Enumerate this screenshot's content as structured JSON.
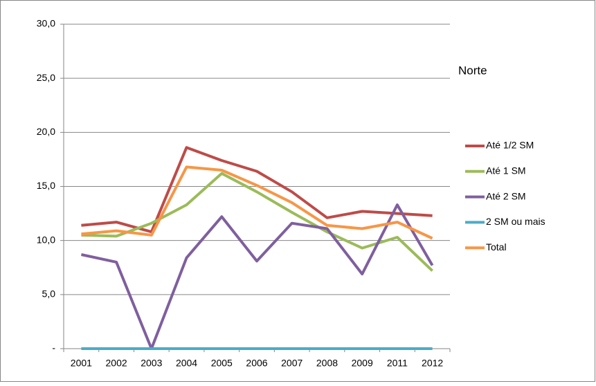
{
  "chart_data": {
    "type": "line",
    "subtitle": "Norte",
    "categories": [
      "2001",
      "2002",
      "2003",
      "2004",
      "2005",
      "2006",
      "2007",
      "2008",
      "2009",
      "2011",
      "2012"
    ],
    "series": [
      {
        "name": "Até 1/2 SM",
        "color": "#be4b48",
        "values": [
          11.4,
          11.7,
          10.8,
          18.6,
          17.4,
          16.4,
          14.5,
          12.1,
          12.7,
          12.5,
          12.3
        ]
      },
      {
        "name": "Até 1 SM",
        "color": "#9bbb59",
        "values": [
          10.5,
          10.4,
          11.6,
          13.3,
          16.2,
          14.5,
          12.6,
          10.8,
          9.3,
          10.3,
          7.2
        ]
      },
      {
        "name": "Até 2 SM",
        "color": "#7f5f9f",
        "values": [
          8.7,
          8.0,
          0,
          8.4,
          12.2,
          8.1,
          11.6,
          11.1,
          6.9,
          13.3,
          7.7
        ]
      },
      {
        "name": "2 SM ou mais",
        "color": "#4bacc6",
        "values": [
          0,
          0,
          0,
          0,
          0,
          0,
          0,
          0,
          0,
          0,
          0
        ]
      },
      {
        "name": "Total",
        "color": "#f79646",
        "values": [
          10.6,
          10.9,
          10.5,
          16.8,
          16.5,
          15.1,
          13.5,
          11.4,
          11.1,
          11.7,
          10.2
        ]
      }
    ],
    "ylim": [
      0,
      30
    ],
    "yticks": [
      {
        "value": 0,
        "label": "-"
      },
      {
        "value": 5,
        "label": "5,0"
      },
      {
        "value": 10,
        "label": "10,0"
      },
      {
        "value": 15,
        "label": "15,0"
      },
      {
        "value": 20,
        "label": "20,0"
      },
      {
        "value": 25,
        "label": "25,0"
      },
      {
        "value": 30,
        "label": "30,0"
      }
    ],
    "grid": true,
    "legend": "right"
  }
}
